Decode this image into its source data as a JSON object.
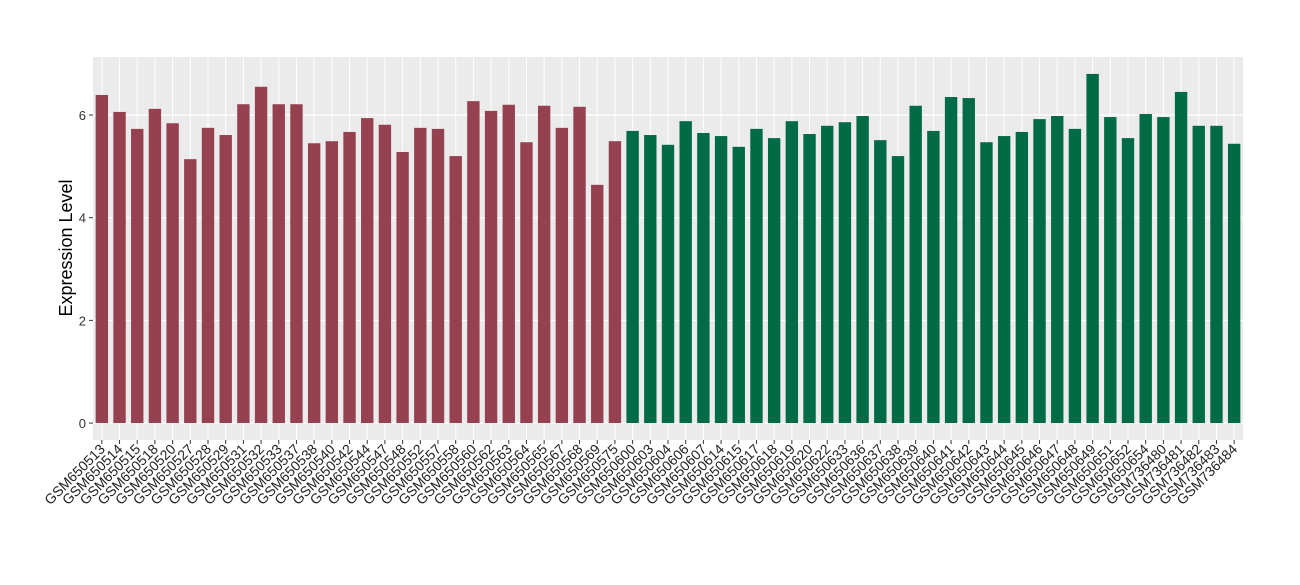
{
  "chart_data": {
    "type": "bar",
    "y_label": "Expression Level",
    "categories": [
      "GSM650513",
      "GSM650514",
      "GSM650515",
      "GSM650518",
      "GSM650520",
      "GSM650527",
      "GSM650528",
      "GSM650529",
      "GSM650531",
      "GSM650532",
      "GSM650533",
      "GSM650537",
      "GSM650538",
      "GSM650540",
      "GSM650542",
      "GSM650544",
      "GSM650547",
      "GSM650548",
      "GSM650552",
      "GSM650557",
      "GSM650558",
      "GSM650560",
      "GSM650562",
      "GSM650563",
      "GSM650564",
      "GSM650565",
      "GSM650567",
      "GSM650568",
      "GSM650569",
      "GSM650575",
      "GSM650600",
      "GSM650603",
      "GSM650604",
      "GSM650606",
      "GSM650607",
      "GSM650614",
      "GSM650615",
      "GSM650617",
      "GSM650618",
      "GSM650619",
      "GSM650620",
      "GSM650622",
      "GSM650633",
      "GSM650636",
      "GSM650637",
      "GSM650638",
      "GSM650639",
      "GSM650640",
      "GSM650641",
      "GSM650642",
      "GSM650643",
      "GSM650644",
      "GSM650645",
      "GSM650646",
      "GSM650647",
      "GSM650648",
      "GSM650649",
      "GSM650651",
      "GSM650652",
      "GSM650654",
      "GSM736480",
      "GSM736481",
      "GSM736482",
      "GSM736483",
      "GSM736484"
    ],
    "values": [
      6.39,
      6.06,
      5.73,
      6.12,
      5.84,
      5.14,
      5.75,
      5.61,
      6.21,
      6.55,
      6.21,
      6.21,
      5.45,
      5.49,
      5.67,
      5.94,
      5.81,
      5.28,
      5.75,
      5.73,
      5.2,
      6.27,
      6.08,
      6.2,
      5.47,
      6.18,
      5.75,
      6.16,
      4.64,
      5.49,
      5.69,
      5.61,
      5.42,
      5.88,
      5.65,
      5.59,
      5.38,
      5.73,
      5.55,
      5.88,
      5.63,
      5.79,
      5.86,
      5.98,
      5.51,
      5.2,
      6.18,
      5.69,
      6.35,
      6.33,
      5.47,
      5.59,
      5.67,
      5.92,
      5.98,
      5.73,
      6.8,
      5.96,
      5.55,
      6.02,
      5.96,
      6.45,
      5.79,
      5.79,
      5.44
    ],
    "colors": [
      "#96414f",
      "#96414f",
      "#96414f",
      "#96414f",
      "#96414f",
      "#96414f",
      "#96414f",
      "#96414f",
      "#96414f",
      "#96414f",
      "#96414f",
      "#96414f",
      "#96414f",
      "#96414f",
      "#96414f",
      "#96414f",
      "#96414f",
      "#96414f",
      "#96414f",
      "#96414f",
      "#96414f",
      "#96414f",
      "#96414f",
      "#96414f",
      "#96414f",
      "#96414f",
      "#96414f",
      "#96414f",
      "#96414f",
      "#96414f",
      "#006b45",
      "#006b45",
      "#006b45",
      "#006b45",
      "#006b45",
      "#006b45",
      "#006b45",
      "#006b45",
      "#006b45",
      "#006b45",
      "#006b45",
      "#006b45",
      "#006b45",
      "#006b45",
      "#006b45",
      "#006b45",
      "#006b45",
      "#006b45",
      "#006b45",
      "#006b45",
      "#006b45",
      "#006b45",
      "#006b45",
      "#006b45",
      "#006b45",
      "#006b45",
      "#006b45",
      "#006b45",
      "#006b45",
      "#006b45",
      "#006b45",
      "#006b45",
      "#006b45",
      "#006b45",
      "#006b45"
    ],
    "ylim": [
      -0.33,
      7.13
    ],
    "yticks": [
      0,
      2,
      4,
      6
    ],
    "grid": true
  }
}
